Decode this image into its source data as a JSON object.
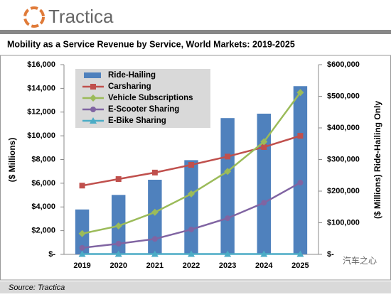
{
  "brand": "Tractica",
  "chart_data": {
    "type": "bar-line",
    "title": "Mobility as a Service Revenue by Service, World Markets: 2019-2025",
    "categories": [
      "2019",
      "2020",
      "2021",
      "2022",
      "2023",
      "2024",
      "2025"
    ],
    "ylabel": "($ Millions)",
    "y2label": "($ Millions) Ride-Hailing Only",
    "ylim": [
      0,
      16000
    ],
    "yticks": [
      {
        "value": 0,
        "label": "$-"
      },
      {
        "value": 2000,
        "label": "$2,000"
      },
      {
        "value": 4000,
        "label": "$4,000"
      },
      {
        "value": 6000,
        "label": "$6,000"
      },
      {
        "value": 8000,
        "label": "$8,000"
      },
      {
        "value": 10000,
        "label": "$10,000"
      },
      {
        "value": 12000,
        "label": "$12,000"
      },
      {
        "value": 14000,
        "label": "$14,000"
      },
      {
        "value": 16000,
        "label": "$16,000"
      }
    ],
    "y2lim": [
      0,
      600000
    ],
    "y2ticks": [
      {
        "value": 0,
        "label": "$-"
      },
      {
        "value": 100000,
        "label": "$100,000"
      },
      {
        "value": 200000,
        "label": "$200,000"
      },
      {
        "value": 300000,
        "label": "$300,000"
      },
      {
        "value": 400000,
        "label": "$400,000"
      },
      {
        "value": 500000,
        "label": "$500,000"
      },
      {
        "value": 600000,
        "label": "$600,000"
      }
    ],
    "series": [
      {
        "name": "Ride-Hailing",
        "color": "#4f81bd",
        "kind": "bar",
        "axis": "y2",
        "values": [
          142000,
          188000,
          236000,
          298000,
          431000,
          445000,
          532000
        ]
      },
      {
        "name": "Carsharing",
        "color": "#c0504d",
        "kind": "line",
        "marker": "square",
        "values": [
          5800,
          6350,
          6900,
          7550,
          8250,
          9050,
          10000
        ]
      },
      {
        "name": "Vehicle Subscriptions",
        "color": "#9bbb59",
        "kind": "line",
        "marker": "diamond",
        "values": [
          1750,
          2400,
          3550,
          5100,
          7000,
          9500,
          13650
        ]
      },
      {
        "name": "E-Scooter Sharing",
        "color": "#8064a2",
        "kind": "line",
        "marker": "circle",
        "values": [
          550,
          900,
          1300,
          2100,
          3050,
          4350,
          6050
        ]
      },
      {
        "name": "E-Bike Sharing",
        "color": "#4bacc6",
        "kind": "line",
        "marker": "triangle",
        "values": [
          30,
          30,
          30,
          30,
          30,
          30,
          30
        ]
      }
    ],
    "source": "Source: Tractica",
    "watermark": "汽车之心"
  }
}
